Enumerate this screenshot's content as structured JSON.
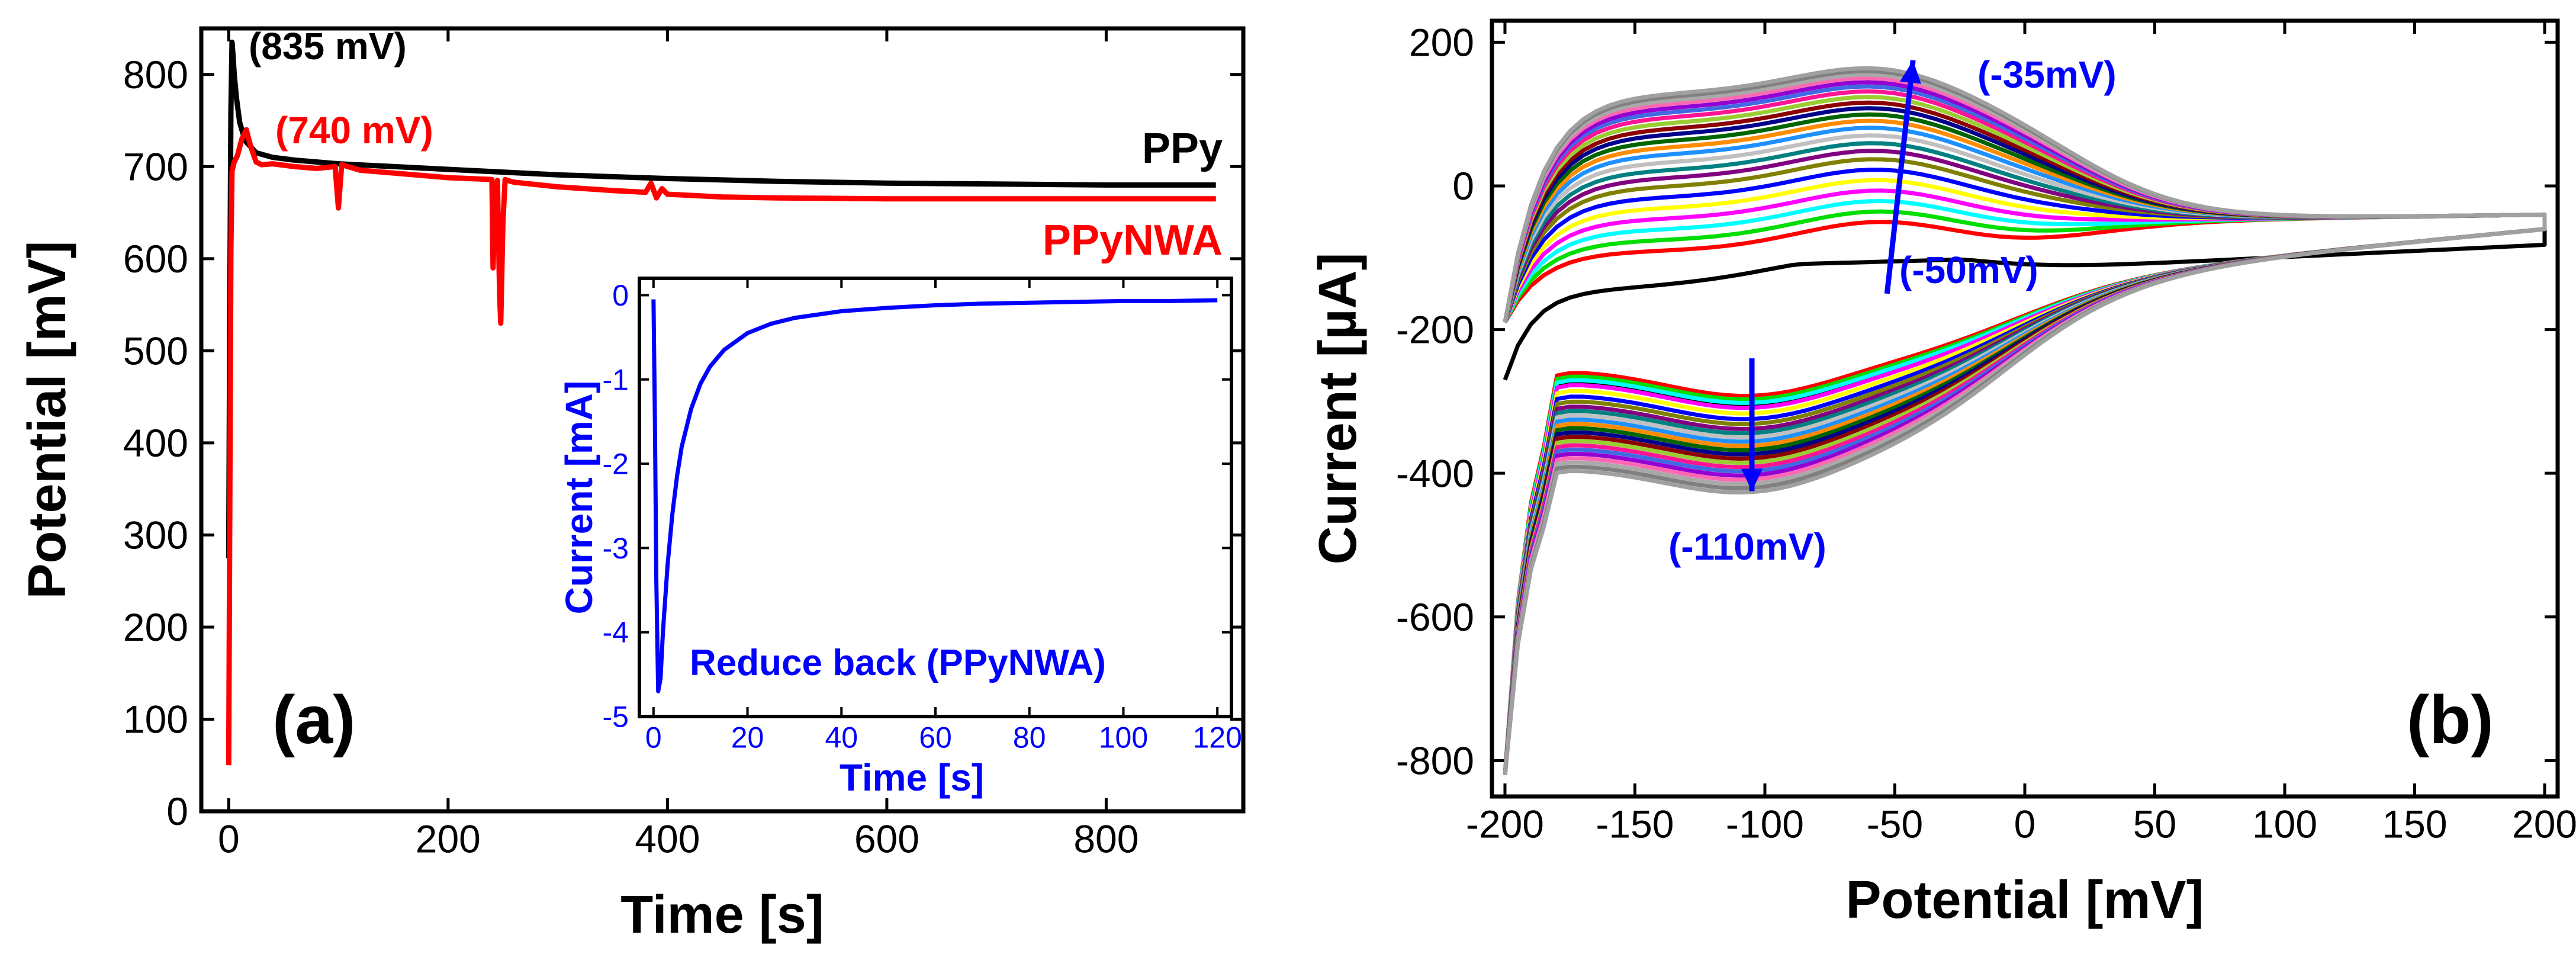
{
  "figure": {
    "panels": [
      "(a)",
      "(b)"
    ]
  },
  "chart_data": [
    {
      "id": "a-main",
      "type": "line",
      "panel_label": "(a)",
      "title": "",
      "xlabel": "Time [s]",
      "ylabel": "Potential [mV]",
      "xlim": [
        -25,
        925
      ],
      "ylim": [
        0,
        850
      ],
      "xticks": [
        0,
        200,
        400,
        600,
        800
      ],
      "yticks": [
        0,
        100,
        200,
        300,
        400,
        500,
        600,
        700,
        800
      ],
      "grid": false,
      "series": [
        {
          "name": "PPy",
          "color": "#000000",
          "x": [
            0,
            1,
            2,
            3,
            4,
            5,
            7,
            10,
            15,
            25,
            40,
            60,
            100,
            150,
            200,
            300,
            400,
            500,
            600,
            700,
            800,
            900
          ],
          "y": [
            275,
            560,
            760,
            835,
            820,
            800,
            775,
            748,
            728,
            715,
            710,
            707,
            703,
            700,
            697,
            691,
            687,
            684,
            682,
            681,
            680,
            680
          ]
        },
        {
          "name": "PPyNWA",
          "color": "#ff0000",
          "x": [
            0,
            1,
            2,
            3,
            5,
            8,
            12,
            16,
            20,
            25,
            30,
            40,
            60,
            80,
            97,
            100,
            103,
            120,
            150,
            200,
            240,
            241,
            243,
            245,
            247,
            248,
            250,
            252,
            254,
            260,
            300,
            350,
            380,
            385,
            390,
            395,
            400,
            450,
            500,
            600,
            700,
            800,
            900
          ],
          "y": [
            50,
            340,
            610,
            695,
            705,
            712,
            730,
            740,
            722,
            705,
            702,
            703,
            700,
            698,
            700,
            655,
            702,
            696,
            693,
            688,
            686,
            590,
            670,
            685,
            560,
            530,
            640,
            686,
            685,
            683,
            678,
            674,
            672,
            682,
            666,
            676,
            670,
            667,
            666,
            665,
            665,
            665,
            665
          ]
        }
      ],
      "legend": [
        "PPy",
        "PPyNWA"
      ],
      "annotations": [
        {
          "text": "(835 mV)",
          "color": "#000000"
        },
        {
          "text": "(740 mV)",
          "color": "#ff0000"
        }
      ]
    },
    {
      "id": "a-inset",
      "type": "line",
      "title": "",
      "xlabel": "Time [s]",
      "ylabel": "Current [mA]",
      "xlim": [
        -3,
        123
      ],
      "ylim": [
        -5,
        0.2
      ],
      "xticks": [
        0,
        20,
        40,
        60,
        80,
        100,
        120
      ],
      "yticks": [
        -5,
        -4,
        -3,
        -2,
        -1,
        0
      ],
      "grid": false,
      "series": [
        {
          "name": "Reduce back (PPyNWA)",
          "color": "#0000ff",
          "x": [
            0,
            0.3,
            0.6,
            1,
            1.5,
            2,
            3,
            4,
            5,
            6,
            8,
            10,
            12,
            15,
            20,
            25,
            30,
            40,
            50,
            60,
            70,
            80,
            90,
            100,
            110,
            120
          ],
          "y": [
            -0.05,
            -1.5,
            -3.4,
            -4.7,
            -4.55,
            -4.0,
            -3.2,
            -2.6,
            -2.15,
            -1.8,
            -1.35,
            -1.05,
            -0.85,
            -0.65,
            -0.45,
            -0.34,
            -0.27,
            -0.19,
            -0.15,
            -0.12,
            -0.1,
            -0.09,
            -0.08,
            -0.07,
            -0.07,
            -0.06
          ]
        }
      ],
      "annotations": [
        {
          "text": "Reduce back (PPyNWA)",
          "color": "#0000ff"
        }
      ]
    },
    {
      "id": "b-cv",
      "type": "line",
      "panel_label": "(b)",
      "title": "",
      "xlabel": "Potential [mV]",
      "ylabel": "Current [µA]",
      "xlim": [
        -205,
        205
      ],
      "ylim": [
        -850,
        230
      ],
      "xticks": [
        -200,
        -150,
        -100,
        -50,
        0,
        50,
        100,
        150,
        200
      ],
      "yticks": [
        -800,
        -600,
        -400,
        -200,
        0,
        200
      ],
      "grid": false,
      "cycles": [
        {
          "color": "#000000",
          "cathodic_peak": -270,
          "anodic_peak": -150
        },
        {
          "color": "#ff0000",
          "cathodic_peak": -255,
          "anodic_peak": -50
        },
        {
          "color": "#00dd00",
          "cathodic_peak": -260,
          "anodic_peak": -35
        },
        {
          "color": "#00ffff",
          "cathodic_peak": -265,
          "anodic_peak": -20
        },
        {
          "color": "#ff00ff",
          "cathodic_peak": -272,
          "anodic_peak": -5
        },
        {
          "color": "#ffff00",
          "cathodic_peak": -280,
          "anodic_peak": 10
        },
        {
          "color": "#0000ff",
          "cathodic_peak": -288,
          "anodic_peak": 25
        },
        {
          "color": "#808000",
          "cathodic_peak": -295,
          "anodic_peak": 40
        },
        {
          "color": "#800080",
          "cathodic_peak": -302,
          "anodic_peak": 52
        },
        {
          "color": "#008080",
          "cathodic_peak": -308,
          "anodic_peak": 63
        },
        {
          "color": "#c0c0c0",
          "cathodic_peak": -314,
          "anodic_peak": 74
        },
        {
          "color": "#1e90ff",
          "cathodic_peak": -320,
          "anodic_peak": 85
        },
        {
          "color": "#ff8c00",
          "cathodic_peak": -326,
          "anodic_peak": 95
        },
        {
          "color": "#006400",
          "cathodic_peak": -332,
          "anodic_peak": 104
        },
        {
          "color": "#00008b",
          "cathodic_peak": -338,
          "anodic_peak": 113
        },
        {
          "color": "#8b0000",
          "cathodic_peak": -344,
          "anodic_peak": 121
        },
        {
          "color": "#9acd32",
          "cathodic_peak": -350,
          "anodic_peak": 129
        },
        {
          "color": "#ff1493",
          "cathodic_peak": -356,
          "anodic_peak": 137
        },
        {
          "color": "#4169e1",
          "cathodic_peak": -362,
          "anodic_peak": 144
        },
        {
          "color": "#9400d3",
          "cathodic_peak": -368,
          "anodic_peak": 150
        },
        {
          "color": "#ff69b4",
          "cathodic_peak": -374,
          "anodic_peak": 156
        },
        {
          "color": "#a9a9a9",
          "cathodic_peak": -380,
          "anodic_peak": 161
        },
        {
          "color": "#808080",
          "cathodic_peak": -386,
          "anodic_peak": 166
        },
        {
          "color": "#a0a0a0",
          "cathodic_peak": -392,
          "anodic_peak": 170
        }
      ],
      "arrows": [
        {
          "from": [
            -53,
            -150
          ],
          "to": [
            -43,
            175
          ],
          "color": "#0000ff"
        },
        {
          "from": [
            -105,
            -240
          ],
          "to": [
            -105,
            -425
          ],
          "color": "#0000ff"
        }
      ],
      "annotations": [
        {
          "text": "(-35mV)",
          "color": "#0000ff"
        },
        {
          "text": "(-50mV)",
          "color": "#0000ff"
        },
        {
          "text": "(-110mV)",
          "color": "#0000ff"
        }
      ]
    }
  ]
}
